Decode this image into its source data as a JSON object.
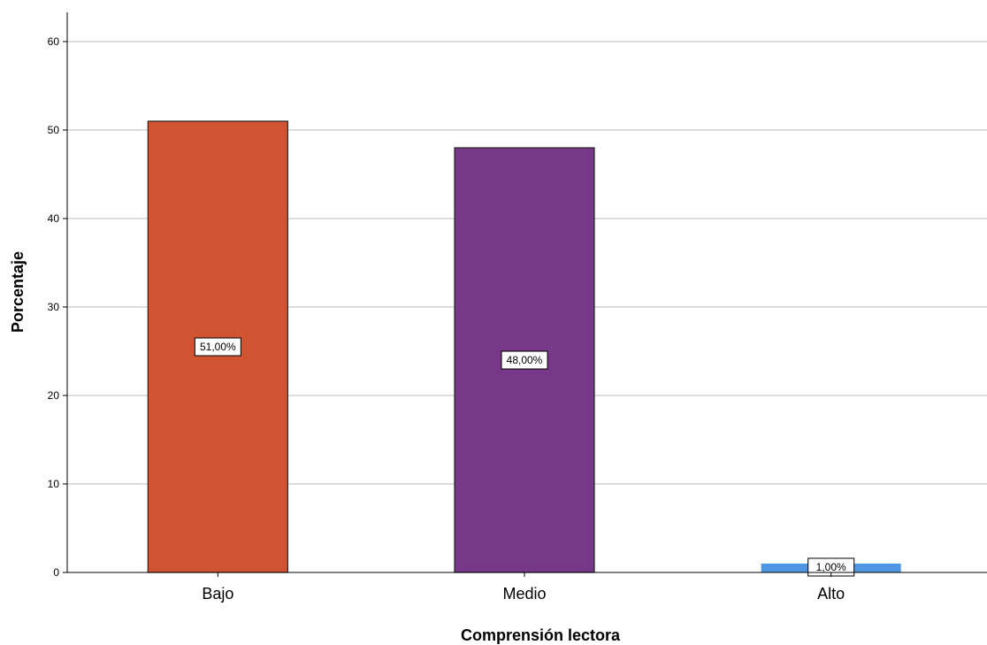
{
  "chart_data": {
    "type": "bar",
    "categories": [
      "Bajo",
      "Medio",
      "Alto"
    ],
    "values": [
      51,
      48,
      1
    ],
    "data_labels": [
      "51,00%",
      "48,00%",
      "1,00%"
    ],
    "colors": [
      "#d05432",
      "#77388a",
      "#4f97e3"
    ],
    "xlabel": "Comprensión lectora",
    "ylabel": "Porcentaje",
    "ylim": [
      0,
      60
    ],
    "yticks": [
      0,
      10,
      20,
      30,
      40,
      50,
      60
    ],
    "grid": true
  }
}
